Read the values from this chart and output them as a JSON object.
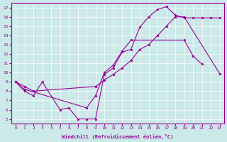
{
  "xlabel": "Windchill (Refroidissement éolien,°C)",
  "bg_color": "#cce9e9",
  "line_color": "#990099",
  "line1_x": [
    0,
    1,
    2,
    3,
    5,
    6,
    7,
    8,
    9,
    10,
    11,
    12,
    13,
    14,
    15,
    16,
    17,
    18,
    19,
    20,
    21,
    22,
    23
  ],
  "line1_y": [
    9,
    8,
    7.5,
    9,
    6,
    6.2,
    5.0,
    5.0,
    5.0,
    9.8,
    10.5,
    12.2,
    12.5,
    14.9,
    16.0,
    16.8,
    17.1,
    16.2,
    15.9,
    15.9,
    15.9,
    15.9,
    15.9
  ],
  "line2_x": [
    0,
    1,
    8,
    9,
    10,
    11,
    12,
    13,
    19,
    20,
    21
  ],
  "line2_y": [
    9,
    8.2,
    6.2,
    7.5,
    10.0,
    10.8,
    12.3,
    13.5,
    13.5,
    11.8,
    10.9
  ],
  "line3_x": [
    0,
    1,
    2,
    9,
    10,
    11,
    12,
    13,
    14,
    15,
    16,
    17,
    18,
    19,
    23
  ],
  "line3_y": [
    9,
    8.5,
    8.0,
    8.5,
    9.2,
    9.8,
    10.5,
    11.3,
    12.5,
    13.0,
    14.0,
    15.0,
    16.0,
    16.0,
    9.9
  ],
  "xlim": [
    0,
    23
  ],
  "ylim": [
    5,
    17
  ],
  "yticks": [
    5,
    6,
    7,
    8,
    9,
    10,
    11,
    12,
    13,
    14,
    15,
    16,
    17
  ],
  "xticks": [
    0,
    1,
    2,
    3,
    4,
    5,
    6,
    7,
    8,
    9,
    10,
    11,
    12,
    13,
    14,
    15,
    16,
    17,
    18,
    19,
    20,
    21,
    22,
    23
  ]
}
